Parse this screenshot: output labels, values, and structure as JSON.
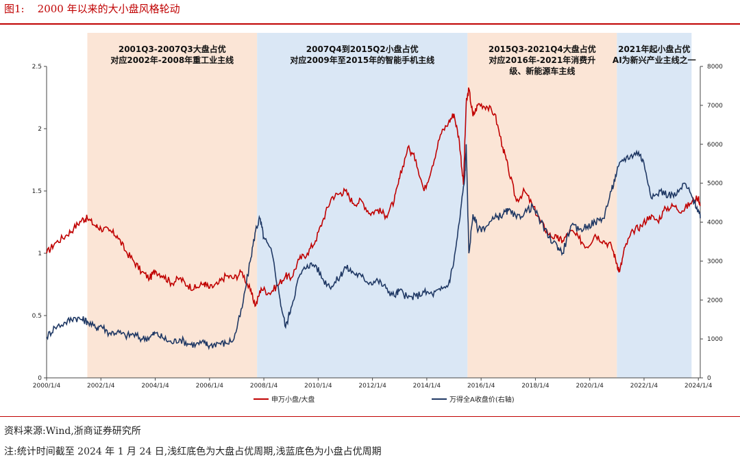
{
  "figure": {
    "title": "图1:    2000 年以来的大小盘风格轮动",
    "source": "资料来源:Wind,浙商证券研究所",
    "note": "注:统计时间截至 2024 年 1 月 24 日,浅红底色为大盘占优周期,浅蓝底色为小盘占优周期"
  },
  "colors": {
    "red_series": "#c00000",
    "blue_series": "#1f3864",
    "large_cap_band": "#fbe5d6",
    "small_cap_band": "#dae7f5"
  },
  "chart_data": {
    "type": "line",
    "title": "2000 年以来的大小盘风格轮动",
    "x_range": [
      2000.0,
      2024.07
    ],
    "x_ticks": [
      {
        "x": 2000.0,
        "label": "2000/1/4"
      },
      {
        "x": 2002.0,
        "label": "2002/1/4"
      },
      {
        "x": 2004.0,
        "label": "2004/1/4"
      },
      {
        "x": 2006.0,
        "label": "2006/1/4"
      },
      {
        "x": 2008.0,
        "label": "2008/1/4"
      },
      {
        "x": 2010.0,
        "label": "2010/1/4"
      },
      {
        "x": 2012.0,
        "label": "2012/1/4"
      },
      {
        "x": 2014.0,
        "label": "2014/1/4"
      },
      {
        "x": 2016.0,
        "label": "2016/1/4"
      },
      {
        "x": 2018.0,
        "label": "2018/1/4"
      },
      {
        "x": 2020.0,
        "label": "2020/1/4"
      },
      {
        "x": 2022.0,
        "label": "2022/1/4"
      },
      {
        "x": 2024.0,
        "label": "2024/1/4"
      }
    ],
    "y_left": {
      "min": 0,
      "max": 2.5,
      "ticks": [
        {
          "v": 0,
          "label": "0"
        },
        {
          "v": 0.5,
          "label": "0.5"
        },
        {
          "v": 1,
          "label": "1"
        },
        {
          "v": 1.5,
          "label": "1.5"
        },
        {
          "v": 2,
          "label": "2"
        },
        {
          "v": 2.5,
          "label": "2.5"
        }
      ]
    },
    "y_right": {
      "min": 0,
      "max": 8000,
      "ticks": [
        {
          "v": 0,
          "label": "0"
        },
        {
          "v": 1000,
          "label": "1000"
        },
        {
          "v": 2000,
          "label": "2000"
        },
        {
          "v": 3000,
          "label": "3000"
        },
        {
          "v": 4000,
          "label": "4000"
        },
        {
          "v": 5000,
          "label": "5000"
        },
        {
          "v": 6000,
          "label": "6000"
        },
        {
          "v": 7000,
          "label": "7000"
        },
        {
          "v": 8000,
          "label": "8000"
        }
      ]
    },
    "periods": [
      {
        "start": 2001.5,
        "end": 2007.75,
        "style": "large",
        "lines": [
          "2001Q3-2007Q3大盘占优",
          "对应2002年-2008年重工业主线"
        ]
      },
      {
        "start": 2007.75,
        "end": 2015.5,
        "style": "small",
        "lines": [
          "2007Q4到2015Q2小盘占优",
          "对应2009年至2015年的智能手机主线"
        ]
      },
      {
        "start": 2015.5,
        "end": 2021.0,
        "style": "large",
        "lines": [
          "2015Q3-2021Q4大盘占优",
          "对应2016年-2021年消费升",
          "级、新能源车主线"
        ]
      },
      {
        "start": 2021.0,
        "end": 2023.75,
        "style": "small",
        "lines": [
          "2021年起小盘占优",
          "AI为新兴产业主线之一"
        ]
      }
    ],
    "series": [
      {
        "name": "申万小盘/大盘",
        "axis": "left",
        "x": [
          2000.0,
          2000.3,
          2000.7,
          2001.0,
          2001.3,
          2001.5,
          2001.8,
          2002.0,
          2002.3,
          2002.6,
          2002.9,
          2003.2,
          2003.5,
          2003.8,
          2004.0,
          2004.3,
          2004.6,
          2004.9,
          2005.2,
          2005.5,
          2005.8,
          2006.0,
          2006.3,
          2006.6,
          2006.9,
          2007.2,
          2007.5,
          2007.7,
          2007.9,
          2008.2,
          2008.5,
          2008.8,
          2009.0,
          2009.3,
          2009.6,
          2009.9,
          2010.2,
          2010.5,
          2010.8,
          2011.0,
          2011.3,
          2011.6,
          2011.9,
          2012.2,
          2012.5,
          2012.8,
          2013.0,
          2013.3,
          2013.6,
          2013.9,
          2014.2,
          2014.5,
          2014.8,
          2015.0,
          2015.2,
          2015.35,
          2015.45,
          2015.55,
          2015.7,
          2015.9,
          2016.2,
          2016.5,
          2016.8,
          2017.0,
          2017.3,
          2017.6,
          2017.9,
          2018.2,
          2018.5,
          2018.8,
          2019.0,
          2019.3,
          2019.6,
          2019.9,
          2020.2,
          2020.5,
          2020.8,
          2021.0,
          2021.1,
          2021.3,
          2021.6,
          2021.9,
          2022.2,
          2022.5,
          2022.8,
          2023.1,
          2023.4,
          2023.7,
          2024.0,
          2024.07
        ],
        "values": [
          1.0,
          1.08,
          1.14,
          1.2,
          1.27,
          1.28,
          1.22,
          1.2,
          1.18,
          1.14,
          1.02,
          0.94,
          0.85,
          0.8,
          0.86,
          0.82,
          0.76,
          0.8,
          0.74,
          0.72,
          0.76,
          0.72,
          0.75,
          0.82,
          0.8,
          0.85,
          0.7,
          0.58,
          0.72,
          0.68,
          0.74,
          0.82,
          0.8,
          0.95,
          1.0,
          1.1,
          1.28,
          1.45,
          1.48,
          1.5,
          1.4,
          1.42,
          1.32,
          1.35,
          1.3,
          1.42,
          1.6,
          1.85,
          1.75,
          1.5,
          1.7,
          1.95,
          2.05,
          2.12,
          1.9,
          1.55,
          2.2,
          2.32,
          2.1,
          2.2,
          2.18,
          2.12,
          1.85,
          1.68,
          1.42,
          1.5,
          1.38,
          1.25,
          1.15,
          1.12,
          1.1,
          1.18,
          1.12,
          1.05,
          1.15,
          1.1,
          1.06,
          0.92,
          0.85,
          1.05,
          1.18,
          1.22,
          1.3,
          1.26,
          1.36,
          1.38,
          1.34,
          1.4,
          1.45,
          1.38
        ]
      },
      {
        "name": "万得全A收盘价(右轴)",
        "axis": "right",
        "x": [
          2000.0,
          2000.3,
          2000.7,
          2001.0,
          2001.3,
          2001.5,
          2001.8,
          2002.0,
          2002.3,
          2002.6,
          2002.9,
          2003.2,
          2003.5,
          2003.8,
          2004.0,
          2004.3,
          2004.6,
          2004.9,
          2005.2,
          2005.5,
          2005.8,
          2006.0,
          2006.3,
          2006.6,
          2006.9,
          2007.2,
          2007.5,
          2007.7,
          2007.85,
          2008.0,
          2008.3,
          2008.6,
          2008.8,
          2009.0,
          2009.3,
          2009.6,
          2009.9,
          2010.2,
          2010.5,
          2010.8,
          2011.0,
          2011.3,
          2011.6,
          2011.9,
          2012.2,
          2012.5,
          2012.8,
          2013.0,
          2013.3,
          2013.6,
          2013.9,
          2014.2,
          2014.5,
          2014.8,
          2015.0,
          2015.2,
          2015.4,
          2015.45,
          2015.55,
          2015.7,
          2015.9,
          2016.2,
          2016.5,
          2016.8,
          2017.0,
          2017.3,
          2017.6,
          2017.9,
          2018.2,
          2018.5,
          2018.8,
          2019.0,
          2019.3,
          2019.6,
          2019.9,
          2020.2,
          2020.5,
          2020.8,
          2021.0,
          2021.2,
          2021.5,
          2021.8,
          2022.0,
          2022.3,
          2022.6,
          2022.9,
          2023.2,
          2023.5,
          2023.8,
          2024.0,
          2024.07
        ],
        "values": [
          1050,
          1300,
          1420,
          1550,
          1500,
          1450,
          1280,
          1350,
          1150,
          1180,
          1080,
          1120,
          1000,
          1050,
          1150,
          1020,
          900,
          1000,
          880,
          860,
          900,
          820,
          900,
          880,
          1000,
          1800,
          3000,
          3800,
          4100,
          3600,
          3200,
          2000,
          1300,
          1800,
          2600,
          2900,
          2900,
          2500,
          2350,
          2600,
          2850,
          2700,
          2600,
          2450,
          2500,
          2300,
          2100,
          2250,
          2050,
          2100,
          2200,
          2150,
          2250,
          2400,
          3000,
          4000,
          5200,
          6000,
          3200,
          4200,
          3800,
          3900,
          4100,
          4200,
          4300,
          4100,
          4250,
          4400,
          4000,
          3600,
          3400,
          3200,
          3900,
          3800,
          3900,
          4000,
          4100,
          4800,
          5300,
          5600,
          5700,
          5800,
          5500,
          4600,
          4800,
          4700,
          4700,
          5000,
          4600,
          4300,
          4100
        ]
      }
    ],
    "legend": [
      "申万小盘/大盘",
      "万得全A收盘价(右轴)"
    ]
  }
}
